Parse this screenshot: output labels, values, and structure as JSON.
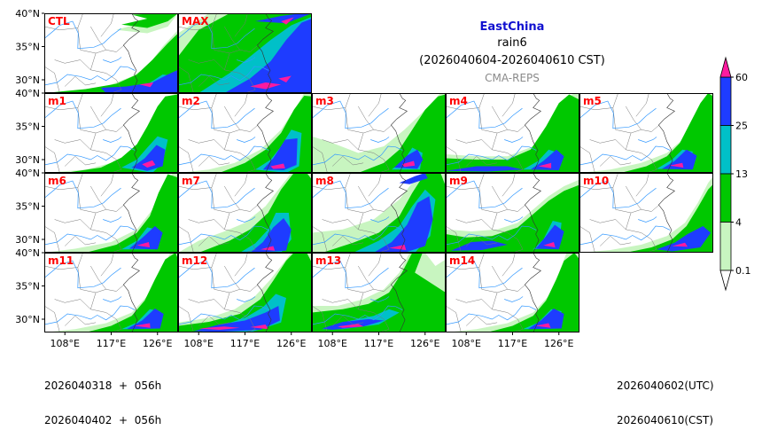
{
  "title": {
    "region": "EastChina",
    "variable": "rain6",
    "period": "(2026040604-2026040610 CST)",
    "model": "CMA-REPS"
  },
  "footer": {
    "init_utc": "2026040318",
    "init_cst": "2026040402",
    "forecast_hour": "056h",
    "valid_utc": "2026040602(UTC)",
    "valid_cst": "2026040610(CST)",
    "plus_sign": "+"
  },
  "chart_data": {
    "type": "filled-contour map grid",
    "panel_labels": [
      "CTL",
      "MAX",
      "m1",
      "m2",
      "m3",
      "m4",
      "m5",
      "m6",
      "m7",
      "m8",
      "m9",
      "m10",
      "m11",
      "m12",
      "m13",
      "m14"
    ],
    "lat_ticks": [
      "40°N",
      "35°N",
      "30°N"
    ],
    "lon_ticks": [
      "108°E",
      "117°E",
      "126°E"
    ],
    "lat_range": [
      28,
      40
    ],
    "lon_range": [
      104,
      130
    ],
    "colorbar": {
      "levels": [
        0.1,
        4,
        13,
        25,
        60
      ],
      "level_labels": [
        "0.1",
        "4",
        "13",
        "25",
        "60"
      ],
      "colors": [
        "#ffffff",
        "#c8f5c0",
        "#00c800",
        "#00c0c8",
        "#1e3cff",
        "#ff1aa0"
      ],
      "extend": "both"
    },
    "colors": {
      "light": "#c8f5c0",
      "green": "#00c800",
      "cyan": "#00c0c8",
      "blue": "#1e3cff",
      "magenta": "#ff1aa0",
      "label": "#ff0000",
      "river": "#3399ff",
      "border": "#777777"
    }
  }
}
